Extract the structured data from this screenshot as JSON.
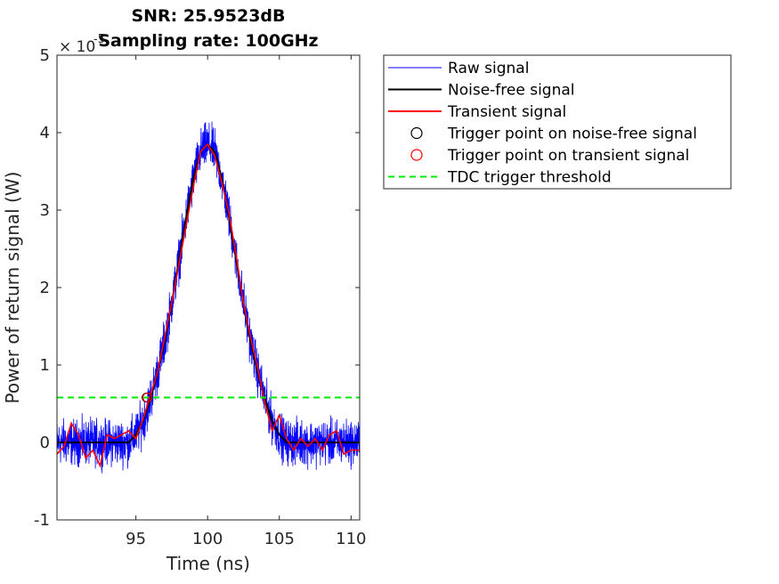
{
  "chart_data": {
    "type": "line",
    "title_lines": [
      "SNR: 25.9523dB",
      "Sampling rate: 100GHz"
    ],
    "xlabel": "Time (ns)",
    "ylabel": "Power of return signal (W)",
    "xlim": [
      89.5,
      110.6
    ],
    "ylim": [
      -1,
      5
    ],
    "y_exponent_label": "× 10",
    "y_exponent": "-5",
    "xticks": [
      95,
      100,
      105,
      110
    ],
    "xtick_labels": [
      "95",
      "100",
      "105",
      "110"
    ],
    "yticks": [
      -1,
      0,
      1,
      2,
      3,
      4,
      5
    ],
    "ytick_labels": [
      "-1",
      "0",
      "1",
      "2",
      "3",
      "4",
      "5"
    ],
    "grid": false,
    "legend_position": "outside-right-top",
    "series": [
      {
        "name": "Raw signal",
        "color": "#0000ff",
        "style": "solid",
        "noise_amplitude": 0.28
      },
      {
        "name": "Noise-free signal",
        "color": "#000000",
        "style": "solid",
        "x": [
          89.5,
          94.5,
          95,
          95.5,
          96,
          96.5,
          97,
          97.5,
          98,
          98.5,
          99,
          99.5,
          100,
          100.5,
          101,
          101.5,
          102,
          102.5,
          103,
          103.5,
          104,
          104.5,
          105,
          105.5,
          110.6
        ],
        "y": [
          0,
          0,
          0.1,
          0.28,
          0.55,
          0.9,
          1.3,
          1.8,
          2.35,
          2.9,
          3.4,
          3.75,
          3.85,
          3.75,
          3.4,
          2.9,
          2.35,
          1.8,
          1.3,
          0.9,
          0.55,
          0.28,
          0.1,
          0,
          0
        ]
      },
      {
        "name": "Transient signal",
        "color": "#ff0000",
        "style": "solid",
        "x": [
          89.5,
          90,
          90.5,
          91,
          91.5,
          92,
          92.5,
          93,
          93.5,
          94,
          94.5,
          95,
          95.5,
          96,
          96.5,
          97,
          97.5,
          98,
          98.5,
          99,
          99.5,
          100,
          100.5,
          101,
          101.5,
          102,
          102.5,
          103,
          103.5,
          104,
          104.5,
          105,
          105.5,
          106,
          106.5,
          107,
          107.5,
          108,
          108.5,
          109,
          109.5,
          110,
          110.6
        ],
        "y": [
          -0.15,
          -0.05,
          0.25,
          0.1,
          -0.2,
          -0.1,
          -0.3,
          0.1,
          0.05,
          0.1,
          0.15,
          0.05,
          0.3,
          0.6,
          0.9,
          1.35,
          1.8,
          2.3,
          2.8,
          3.3,
          3.75,
          3.85,
          3.7,
          3.35,
          2.95,
          2.4,
          1.8,
          1.35,
          0.95,
          0.5,
          0.15,
          0.35,
          0.05,
          -0.1,
          0.05,
          -0.05,
          0.05,
          -0.1,
          0.1,
          0.15,
          -0.15,
          -0.1,
          -0.1
        ]
      },
      {
        "name": "Trigger point on noise-free signal",
        "color": "#000000",
        "style": "marker-circle",
        "x": [
          95.75
        ],
        "y": [
          0.58
        ]
      },
      {
        "name": "Trigger point on transient signal",
        "color": "#ff0000",
        "style": "marker-circle",
        "x": [
          95.8
        ],
        "y": [
          0.58
        ]
      },
      {
        "name": "TDC trigger threshold",
        "color": "#00ee00",
        "style": "dashed",
        "x": [
          89.5,
          110.6
        ],
        "y": [
          0.58,
          0.58
        ]
      }
    ]
  }
}
